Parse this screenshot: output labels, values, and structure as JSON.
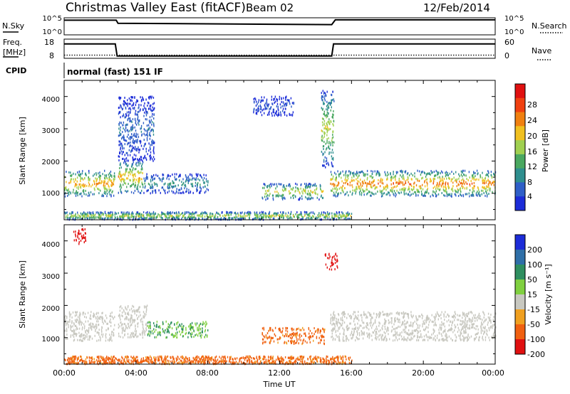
{
  "header": {
    "title": "Christmas Valley East (fitACF)",
    "beam": "Beam 02",
    "date": "12/Feb/2014"
  },
  "status": {
    "nsky_label": "N.Sky",
    "nsky_ticks": [
      "10^5",
      "10^0"
    ],
    "nsearch_label": "N.Search",
    "nsearch_ticks": [
      "10^5",
      "10^0"
    ],
    "freq_label_1": "Freq.",
    "freq_label_2": "[MHz]",
    "freq_ticks": [
      "18",
      "8"
    ],
    "nave_label": "Nave",
    "nave_ticks": [
      "60",
      "0"
    ],
    "cpid_label": "CPID",
    "cpid_value": "normal (fast) 151 IF"
  },
  "power_panel": {
    "ylabel": "Slant Range [km]",
    "yticks": [
      "1000",
      "2000",
      "3000",
      "4000"
    ],
    "colorbar_label": "Power [dB]",
    "colorbar_ticks": [
      "4",
      "8",
      "12",
      "16",
      "20",
      "24",
      "28"
    ],
    "colors": [
      "#1c2cd8",
      "#2f5fc8",
      "#2f8f8f",
      "#4aa860",
      "#a0d050",
      "#f0c020",
      "#f08010",
      "#f04010",
      "#e01010"
    ]
  },
  "velocity_panel": {
    "ylabel": "Slant Range [km]",
    "yticks": [
      "1000",
      "2000",
      "3000",
      "4000"
    ],
    "colorbar_label": "Velocity [m s⁻¹]",
    "colorbar_ticks": [
      "200",
      "100",
      "50",
      "15",
      "-15",
      "-50",
      "-100",
      "-200"
    ],
    "colors": [
      "#1c2cd8",
      "#2f6fa8",
      "#2f8f60",
      "#80d040",
      "#c8c8c0",
      "#f0a020",
      "#f06010",
      "#e01010"
    ]
  },
  "xaxis": {
    "label": "Time UT",
    "ticks": [
      "00:00",
      "04:00",
      "08:00",
      "12:00",
      "16:00",
      "20:00",
      "00:00"
    ]
  },
  "chart_data": [
    {
      "type": "line",
      "name": "N.Sky / N.Search",
      "x_hours": [
        0,
        2.9,
        3.0,
        14.9,
        15.1,
        24
      ],
      "log10_noise": [
        4.3,
        4.3,
        3.4,
        3.0,
        4.4,
        4.4
      ],
      "ylim_log10": [
        0,
        5
      ]
    },
    {
      "type": "line",
      "name": "Freq / Nave",
      "x_hours": [
        0,
        2.85,
        2.95,
        14.9,
        15.0,
        24
      ],
      "freq_mhz": [
        15.5,
        15.5,
        9.2,
        9.2,
        15.5,
        15.5
      ],
      "ylim_freq": [
        8,
        18
      ],
      "nave_approx": 10,
      "ylim_nave": [
        0,
        60
      ]
    },
    {
      "type": "heatmap",
      "name": "Power",
      "units": "dB",
      "x_hours": [
        0,
        24
      ],
      "y_km": [
        180,
        4500
      ],
      "color_range": [
        0,
        32
      ],
      "regions": [
        {
          "t": [
            0.0,
            2.8
          ],
          "r": [
            900,
            1700
          ],
          "peak_db": 28
        },
        {
          "t": [
            3.0,
            4.4
          ],
          "r": [
            1000,
            2000
          ],
          "peak_db": 26
        },
        {
          "t": [
            4.4,
            8.0
          ],
          "r": [
            1000,
            1600
          ],
          "peak_db": 14
        },
        {
          "t": [
            11.0,
            14.4
          ],
          "r": [
            800,
            1300
          ],
          "peak_db": 24
        },
        {
          "t": [
            14.8,
            24.0
          ],
          "r": [
            900,
            1700
          ],
          "peak_db": 30
        },
        {
          "t": [
            0.0,
            16.0
          ],
          "r": [
            180,
            420
          ],
          "peak_db": 22
        },
        {
          "t": [
            3.0,
            5.0
          ],
          "r": [
            2000,
            4000
          ],
          "peak_db": 10
        },
        {
          "t": [
            10.5,
            12.8
          ],
          "r": [
            3400,
            4000
          ],
          "peak_db": 8
        },
        {
          "t": [
            14.3,
            15.0
          ],
          "r": [
            1800,
            4200
          ],
          "peak_db": 22
        }
      ]
    },
    {
      "type": "heatmap",
      "name": "Velocity",
      "units": "m s^-1",
      "x_hours": [
        0,
        24
      ],
      "y_km": [
        180,
        4500
      ],
      "color_range": [
        -250,
        250
      ],
      "regions": [
        {
          "t": [
            0.0,
            2.8
          ],
          "r": [
            900,
            1800
          ],
          "v": 0
        },
        {
          "t": [
            3.0,
            4.6
          ],
          "r": [
            1000,
            2000
          ],
          "v": 0
        },
        {
          "t": [
            4.6,
            8.0
          ],
          "r": [
            1000,
            1500
          ],
          "v": 30
        },
        {
          "t": [
            11.0,
            14.5
          ],
          "r": [
            800,
            1300
          ],
          "v": -60
        },
        {
          "t": [
            14.8,
            24.0
          ],
          "r": [
            900,
            1800
          ],
          "v": 0
        },
        {
          "t": [
            0.0,
            16.0
          ],
          "r": [
            180,
            420
          ],
          "v": -60
        },
        {
          "t": [
            0.5,
            1.2
          ],
          "r": [
            3900,
            4400
          ],
          "v": -200
        },
        {
          "t": [
            14.5,
            15.2
          ],
          "r": [
            3100,
            3600
          ],
          "v": -200
        }
      ]
    }
  ]
}
